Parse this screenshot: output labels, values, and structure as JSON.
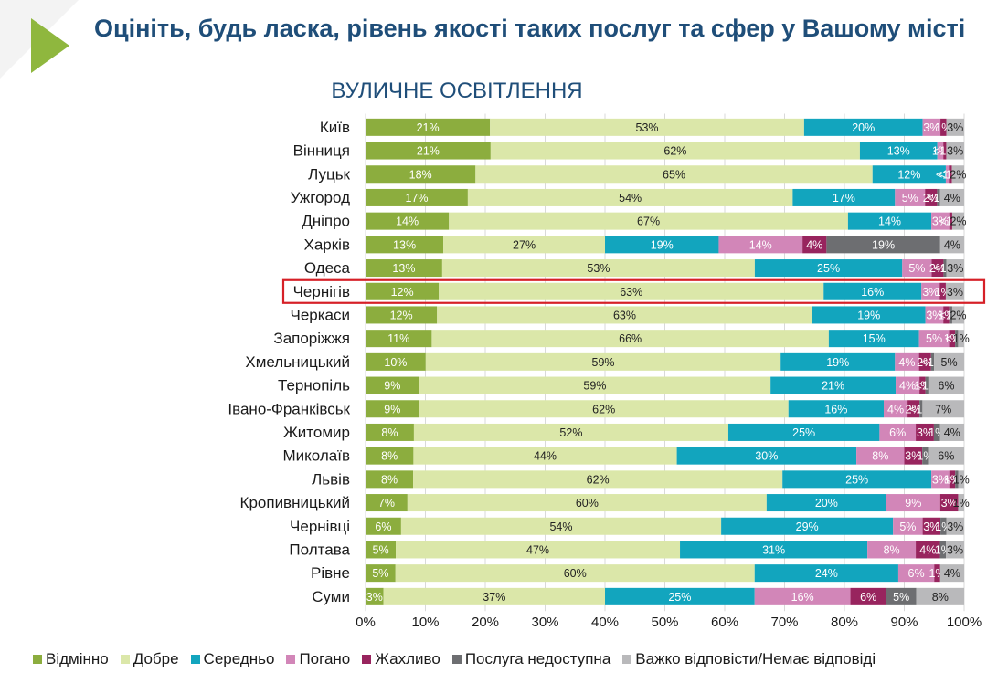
{
  "header": {
    "title": "Оцініть, будь ласка, рівень якості таких послуг та сфер у Вашому місті"
  },
  "chart_data": {
    "type": "bar",
    "orientation": "horizontal",
    "stacked": true,
    "title": "ВУЛИЧНЕ ОСВІТЛЕННЯ",
    "x_ticks": [
      "0%",
      "10%",
      "20%",
      "30%",
      "40%",
      "50%",
      "60%",
      "70%",
      "80%",
      "90%",
      "100%"
    ],
    "xlim": [
      0,
      100
    ],
    "grid": true,
    "legend_position": "bottom",
    "highlighted_category": "Чернігів",
    "highlight_color": "#d62027",
    "categories": [
      "Київ",
      "Вінниця",
      "Луцьк",
      "Ужгород",
      "Дніпро",
      "Харків",
      "Одеса",
      "Чернігів",
      "Черкаси",
      "Запоріжжя",
      "Хмельницький",
      "Тернопіль",
      "Івано-Франківськ",
      "Житомир",
      "Миколаїв",
      "Львів",
      "Кропивницький",
      "Чернівці",
      "Полтава",
      "Рівне",
      "Суми"
    ],
    "series": [
      {
        "name": "Відмінно",
        "color": "#8cad3e",
        "label_color": "#ffffff",
        "values": [
          21,
          21,
          18,
          17,
          14,
          13,
          13,
          12,
          12,
          11,
          10,
          9,
          9,
          8,
          8,
          8,
          7,
          6,
          5,
          5,
          3
        ],
        "labels": [
          "21%",
          "21%",
          "18%",
          "17%",
          "14%",
          "13%",
          "13%",
          "12%",
          "12%",
          "11%",
          "10%",
          "9%",
          "9%",
          "8%",
          "8%",
          "8%",
          "7%",
          "6%",
          "5%",
          "5%",
          "3%"
        ]
      },
      {
        "name": "Добре",
        "color": "#dbe7a9",
        "label_color": "#222222",
        "values": [
          53,
          62,
          65,
          54,
          67,
          27,
          53,
          63,
          63,
          66,
          59,
          59,
          62,
          52,
          44,
          62,
          60,
          54,
          47,
          60,
          37
        ],
        "labels": [
          "53%",
          "62%",
          "65%",
          "54%",
          "67%",
          "27%",
          "53%",
          "63%",
          "63%",
          "66%",
          "59%",
          "59%",
          "62%",
          "52%",
          "44%",
          "62%",
          "60%",
          "54%",
          "47%",
          "60%",
          "37%"
        ]
      },
      {
        "name": "Середньо",
        "color": "#12a5be",
        "label_color": "#ffffff",
        "values": [
          20,
          13,
          12,
          17,
          14,
          19,
          25,
          16,
          19,
          15,
          19,
          21,
          16,
          25,
          30,
          25,
          20,
          29,
          31,
          24,
          25
        ],
        "labels": [
          "20%",
          "13%",
          "12%",
          "17%",
          "14%",
          "19%",
          "25%",
          "16%",
          "19%",
          "15%",
          "19%",
          "21%",
          "16%",
          "25%",
          "30%",
          "25%",
          "20%",
          "29%",
          "31%",
          "24%",
          "25%"
        ]
      },
      {
        "name": "Погано",
        "color": "#d286b8",
        "label_color": "#ffffff",
        "values": [
          3,
          1,
          0.5,
          5,
          3,
          14,
          5,
          3,
          3,
          5,
          4,
          4,
          4,
          6,
          8,
          3,
          9,
          5,
          8,
          6,
          16
        ],
        "labels": [
          "3%",
          "1%",
          "<1%",
          "5%",
          "3%",
          "14%",
          "5%",
          "3%",
          "3%",
          "5%",
          "4%",
          "4%",
          "4%",
          "6%",
          "8%",
          "3%",
          "9%",
          "5%",
          "8%",
          "6%",
          "16%"
        ]
      },
      {
        "name": "Жахливо",
        "color": "#98245e",
        "label_color": "#ffffff",
        "values": [
          1,
          0.5,
          0.5,
          2,
          0.5,
          4,
          2,
          1,
          1,
          1,
          2,
          1,
          2,
          3,
          3,
          1,
          3,
          3,
          4,
          1,
          6
        ],
        "labels": [
          "1%",
          "<1%",
          "<1%",
          "2%",
          "<1%",
          "4%",
          "2%",
          "1%",
          "1%",
          "1%",
          "2%",
          "1%",
          "2%",
          "3%",
          "3%",
          "1%",
          "3%",
          "3%",
          "4%",
          "1%",
          "6%"
        ]
      },
      {
        "name": "Послуга недоступна",
        "color": "#6d6e71",
        "label_color": "#ffffff",
        "values": [
          0,
          0,
          0,
          0.5,
          0,
          19,
          0.5,
          0,
          0.5,
          0.5,
          0.5,
          0.5,
          0.5,
          1,
          1,
          0.5,
          0,
          1,
          1,
          0,
          5
        ],
        "labels": [
          "",
          "",
          "",
          "<1%",
          "",
          "19%",
          "<1%",
          "",
          "<1%",
          "<1%",
          "<1%",
          "<1%",
          "<1%",
          "1%",
          "1%",
          "<1%",
          "",
          "1%",
          "1%",
          "",
          "5%"
        ]
      },
      {
        "name": "Важко відповісти/Немає відповіді",
        "color": "#b9b9bb",
        "label_color": "#222222",
        "values": [
          3,
          3,
          2,
          4,
          2,
          4,
          3,
          3,
          2,
          1,
          5,
          6,
          7,
          4,
          6,
          1,
          1,
          3,
          3,
          4,
          8
        ],
        "labels": [
          "3%",
          "3%",
          "2%",
          "4%",
          "2%",
          "4%",
          "3%",
          "3%",
          "2%",
          "1%",
          "5%",
          "6%",
          "7%",
          "4%",
          "6%",
          "1%",
          "1%",
          "3%",
          "3%",
          "4%",
          "8%"
        ]
      }
    ]
  }
}
